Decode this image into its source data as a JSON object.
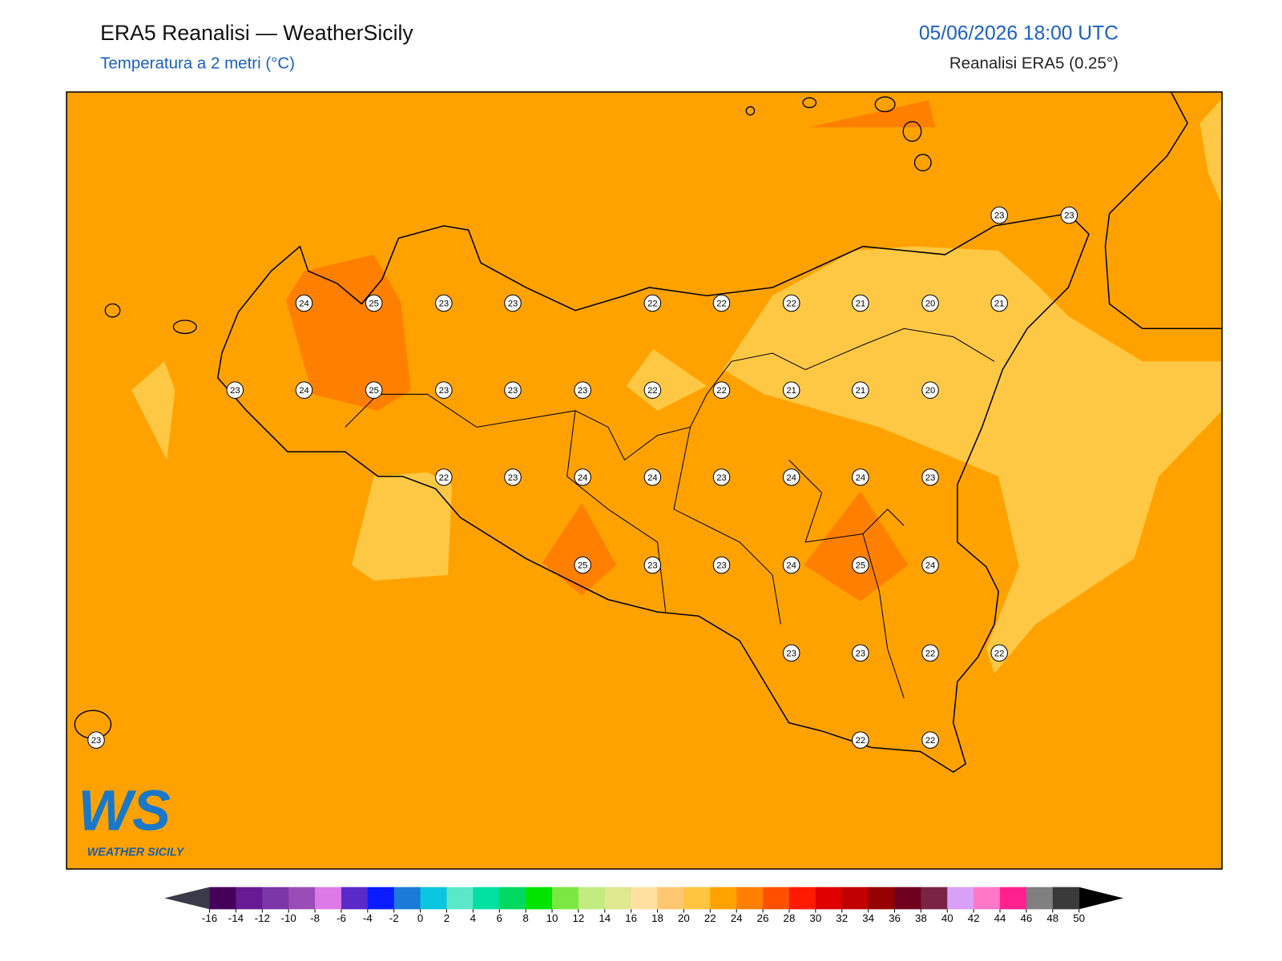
{
  "header": {
    "title": "ERA5 Reanalisi — WeatherSicily",
    "subtitle": "Temperatura a 2 metri (°C)",
    "datetime": "05/06/2026 18:00 UTC",
    "source": "Reanalisi ERA5 (0.25°)"
  },
  "map": {
    "stations": [
      23,
      23,
      24,
      25,
      23,
      23,
      22,
      22,
      22,
      21,
      20,
      21,
      23,
      24,
      25,
      23,
      23,
      23,
      22,
      22,
      21,
      21,
      20,
      22,
      23,
      24,
      24,
      23,
      24,
      24,
      23,
      25,
      23,
      23,
      24,
      25,
      24,
      23,
      23,
      22,
      22,
      23,
      22,
      22
    ]
  },
  "logo": {
    "text": "WS",
    "subtitle": "WEATHER SICILY"
  },
  "colorbar": {
    "ticks": [
      -16,
      -14,
      -12,
      -10,
      -8,
      -6,
      -4,
      -2,
      0,
      2,
      4,
      6,
      8,
      10,
      12,
      14,
      16,
      18,
      20,
      22,
      24,
      26,
      28,
      30,
      32,
      34,
      36,
      38,
      40,
      42,
      44,
      46,
      48,
      50
    ],
    "colors": [
      "#45005a",
      "#661a94",
      "#7d36a8",
      "#9a4cb8",
      "#de7ae8",
      "#5a2ac6",
      "#0a1cff",
      "#1a7ad8",
      "#0ac6e0",
      "#5ae8c8",
      "#00e0a0",
      "#00d860",
      "#00e400",
      "#7ae840",
      "#c0ec80",
      "#e0e890",
      "#ffe0a0",
      "#ffc870",
      "#ffc440",
      "#ffa200",
      "#ff8000",
      "#ff5000",
      "#ff1a00",
      "#e00000",
      "#c00000",
      "#960000",
      "#700020",
      "#7a2444",
      "#d8a0f8",
      "#ff78c8",
      "#ff2090",
      "#808080",
      "#3a3a3a"
    ],
    "under_color": "#3a3a48",
    "over_color": "#000000"
  }
}
